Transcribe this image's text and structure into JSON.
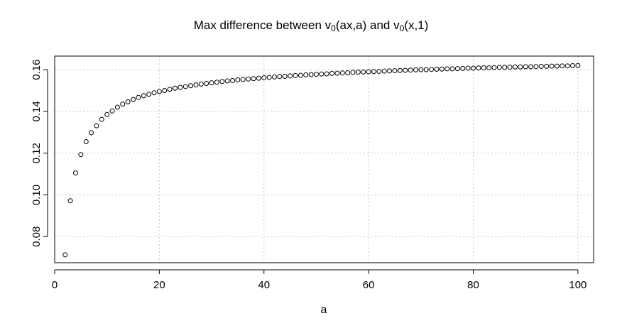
{
  "chart_data": {
    "type": "scatter",
    "title": {
      "part1": "Max difference between v",
      "sub1": "0",
      "part2": "(ax,a) and v",
      "sub2": "0",
      "part3": "(x,1)"
    },
    "xlabel": "a",
    "ylabel": "",
    "xlim": [
      0,
      103
    ],
    "ylim": [
      0.0675,
      0.1665
    ],
    "x_ticks": [
      0,
      20,
      40,
      60,
      80,
      100
    ],
    "x_tick_labels": [
      "0",
      "20",
      "40",
      "60",
      "80",
      "100"
    ],
    "y_ticks": [
      0.08,
      0.1,
      0.12,
      0.14,
      0.16
    ],
    "y_tick_labels": [
      "0.08",
      "0.10",
      "0.12",
      "0.14",
      "0.16"
    ],
    "grid": true,
    "grid_style": "dotted",
    "marker": "open-circle",
    "colors": {
      "points": "#000000",
      "grid": "#c8c8c8",
      "axes": "#000000"
    },
    "x": [
      2,
      3,
      4,
      5,
      6,
      7,
      8,
      9,
      10,
      11,
      12,
      13,
      14,
      15,
      16,
      17,
      18,
      19,
      20,
      21,
      22,
      23,
      24,
      25,
      26,
      27,
      28,
      29,
      30,
      31,
      32,
      33,
      34,
      35,
      36,
      37,
      38,
      39,
      40,
      41,
      42,
      43,
      44,
      45,
      46,
      47,
      48,
      49,
      50,
      51,
      52,
      53,
      54,
      55,
      56,
      57,
      58,
      59,
      60,
      61,
      62,
      63,
      64,
      65,
      66,
      67,
      68,
      69,
      70,
      71,
      72,
      73,
      74,
      75,
      76,
      77,
      78,
      79,
      80,
      81,
      82,
      83,
      84,
      85,
      86,
      87,
      88,
      89,
      90,
      91,
      92,
      93,
      94,
      95,
      96,
      97,
      98,
      99,
      100
    ],
    "y": [
      0.0713,
      0.0972,
      0.1105,
      0.1193,
      0.1255,
      0.1298,
      0.1331,
      0.1362,
      0.1385,
      0.1402,
      0.142,
      0.1435,
      0.1446,
      0.1457,
      0.1467,
      0.1475,
      0.1482,
      0.1489,
      0.1495,
      0.15,
      0.1506,
      0.1511,
      0.1515,
      0.1519,
      0.1523,
      0.1527,
      0.1531,
      0.1534,
      0.1537,
      0.154,
      0.1543,
      0.1546,
      0.1548,
      0.1551,
      0.1553,
      0.1555,
      0.1557,
      0.1559,
      0.1561,
      0.1563,
      0.1565,
      0.1567,
      0.1568,
      0.157,
      0.1572,
      0.1573,
      0.1575,
      0.1576,
      0.1578,
      0.1579,
      0.158,
      0.1582,
      0.1583,
      0.1584,
      0.1585,
      0.1587,
      0.1588,
      0.1589,
      0.159,
      0.1591,
      0.1592,
      0.1593,
      0.1594,
      0.1595,
      0.1596,
      0.1597,
      0.1598,
      0.1599,
      0.16,
      0.16,
      0.1601,
      0.1602,
      0.1603,
      0.1604,
      0.1604,
      0.1605,
      0.1606,
      0.1607,
      0.1607,
      0.1608,
      0.1609,
      0.1609,
      0.161,
      0.1611,
      0.1611,
      0.1612,
      0.1613,
      0.1613,
      0.1614,
      0.1614,
      0.1615,
      0.1616,
      0.1616,
      0.1617,
      0.1617,
      0.1618,
      0.1618,
      0.1619,
      0.162
    ]
  }
}
